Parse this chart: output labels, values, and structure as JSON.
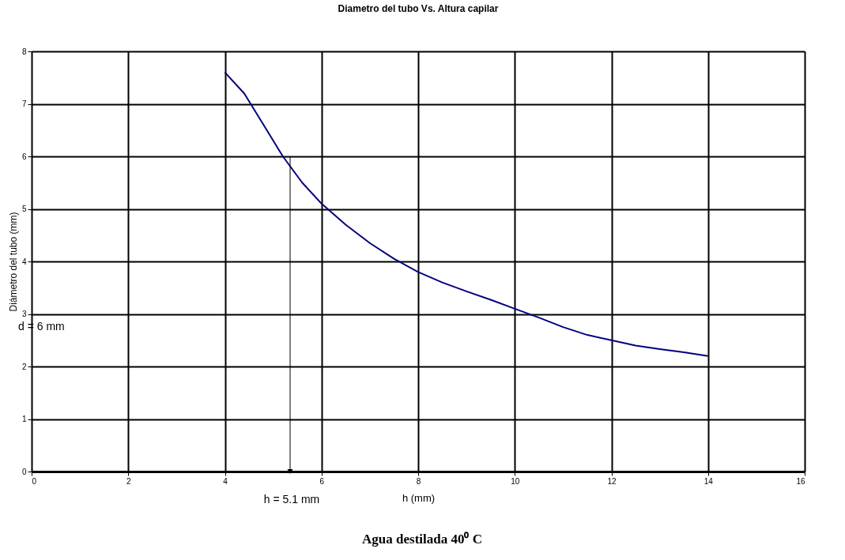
{
  "chart_data": {
    "type": "line",
    "title": "Diametro del tubo Vs. Altura capilar",
    "xlabel": "h  (mm)",
    "ylabel": "Diámetro del tubo  (mm)",
    "x": [
      4,
      4.4,
      4.8,
      5.2,
      5.6,
      6,
      6.5,
      7,
      7.5,
      8,
      8.5,
      9,
      9.5,
      10,
      10.5,
      11,
      11.5,
      12,
      12.5,
      13,
      13.5,
      14
    ],
    "series": [
      {
        "color": "#000080",
        "values": [
          7.6,
          7.2,
          6.6,
          6.0,
          5.5,
          5.1,
          4.7,
          4.35,
          4.05,
          3.8,
          3.6,
          3.43,
          3.27,
          3.1,
          2.93,
          2.75,
          2.6,
          2.5,
          2.4,
          2.33,
          2.27,
          2.2
        ]
      },
      {
        "type": "line",
        "x": [
          5.35,
          5.35
        ],
        "values": [
          6.0,
          0.0
        ],
        "color": "#000000",
        "line_style": "solid",
        "marker": "triangle"
      }
    ],
    "xlim": [
      0,
      16
    ],
    "xticks": [
      0,
      2,
      4,
      6,
      8,
      10,
      12,
      14,
      16
    ],
    "ylim": [
      0,
      8
    ],
    "yticks": [
      0,
      1,
      2,
      3,
      4,
      5,
      6,
      7,
      8
    ],
    "grid": true,
    "marker": "none",
    "line_style": "solid",
    "annotations": [
      "d = 6 mm",
      "h  = 5.1 mm",
      "Agua destilada 40⁰ C"
    ]
  }
}
